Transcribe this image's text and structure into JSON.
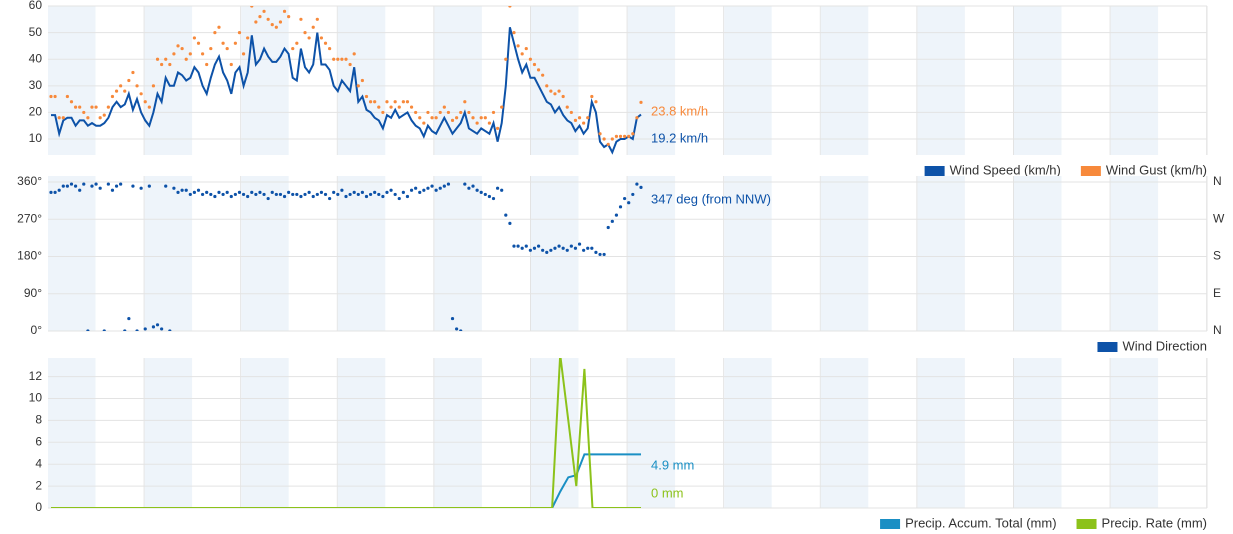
{
  "chart_data": [
    {
      "type": "line",
      "ylim": [
        4,
        60
      ],
      "yticks": [
        10,
        20,
        30,
        40,
        50,
        60
      ],
      "grid": true,
      "series": [
        {
          "name": "Wind Speed (km/h)",
          "color": "#0d52a8",
          "mode": "line",
          "end_label": "19.2 km/h",
          "values": [
            19,
            19,
            12,
            17,
            18,
            18,
            15,
            17,
            17,
            15,
            16,
            15,
            15,
            16,
            18,
            22,
            24,
            22,
            23,
            27,
            21,
            25,
            20,
            17,
            15,
            20,
            27,
            24,
            33,
            30,
            30,
            35,
            34,
            32,
            33,
            37,
            35,
            30,
            27,
            33,
            38,
            41,
            35,
            32,
            27,
            35,
            37,
            30,
            35,
            49,
            38,
            40,
            44,
            41,
            39,
            39,
            41,
            44,
            42,
            33,
            32,
            44,
            37,
            35,
            38,
            50,
            38,
            38,
            36,
            30,
            28,
            32,
            30,
            28,
            37,
            24,
            26,
            21,
            20,
            18,
            17,
            14,
            19,
            18,
            21,
            18,
            19,
            20,
            17,
            15,
            14,
            11,
            15,
            13,
            12,
            15,
            18,
            15,
            12,
            14,
            16,
            20,
            14,
            13,
            12,
            14,
            13,
            12,
            16,
            9,
            16,
            30,
            52,
            46,
            40,
            35,
            38,
            33,
            33,
            30,
            27,
            24,
            23,
            20,
            22,
            19,
            17,
            16,
            13,
            15,
            12,
            14,
            24,
            20,
            9,
            7,
            8,
            5,
            9,
            10,
            10,
            11,
            10,
            18,
            19.2
          ]
        },
        {
          "name": "Wind Gust (km/h)",
          "color": "#f7893b",
          "mode": "markers",
          "end_label": "23.8 km/h",
          "values": [
            26,
            26,
            18,
            18,
            26,
            24,
            22,
            22,
            20,
            18,
            22,
            22,
            18,
            19,
            22,
            26,
            28,
            30,
            28,
            32,
            35,
            30,
            27,
            24,
            22,
            30,
            40,
            38,
            40,
            38,
            42,
            45,
            44,
            40,
            42,
            48,
            46,
            42,
            38,
            44,
            50,
            52,
            46,
            44,
            38,
            46,
            50,
            42,
            48,
            60,
            54,
            56,
            58,
            55,
            53,
            52,
            54,
            58,
            56,
            44,
            46,
            55,
            50,
            48,
            52,
            55,
            48,
            46,
            44,
            40,
            40,
            40,
            40,
            38,
            42,
            30,
            32,
            26,
            24,
            24,
            22,
            20,
            24,
            22,
            24,
            22,
            24,
            24,
            22,
            20,
            18,
            16,
            20,
            18,
            18,
            20,
            22,
            20,
            17,
            18,
            20,
            24,
            20,
            18,
            16,
            18,
            18,
            16,
            20,
            14,
            22,
            40,
            60,
            50,
            45,
            42,
            44,
            40,
            38,
            36,
            34,
            30,
            28,
            27,
            28,
            26,
            22,
            20,
            17,
            18,
            16,
            18,
            26,
            24,
            12,
            10,
            8,
            10,
            11,
            11,
            11,
            11,
            12,
            18,
            23.8
          ]
        }
      ]
    },
    {
      "type": "scatter",
      "ylim": [
        0,
        360
      ],
      "grid": true,
      "yticks": [
        {
          "value": 0,
          "label": "0°"
        },
        {
          "value": 90,
          "label": "90°"
        },
        {
          "value": 180,
          "label": "180°"
        },
        {
          "value": 270,
          "label": "270°"
        },
        {
          "value": 360,
          "label": "360°"
        }
      ],
      "y2lim": [
        0,
        360
      ],
      "y2ticks": [
        {
          "value": 0,
          "label": "N"
        },
        {
          "value": 90,
          "label": "E"
        },
        {
          "value": 180,
          "label": "S"
        },
        {
          "value": 270,
          "label": "W"
        },
        {
          "value": 360,
          "label": "N"
        }
      ],
      "series": [
        {
          "name": "Wind Direction",
          "color": "#0d52a8",
          "mode": "markers",
          "end_label": "347 deg (from NNW)",
          "values": [
            335,
            335,
            340,
            350,
            350,
            355,
            350,
            340,
            355,
            0,
            350,
            355,
            345,
            0,
            355,
            340,
            350,
            355,
            0,
            30,
            350,
            0,
            345,
            5,
            350,
            10,
            15,
            5,
            350,
            0,
            345,
            335,
            340,
            340,
            330,
            335,
            340,
            330,
            335,
            330,
            325,
            335,
            330,
            335,
            325,
            330,
            335,
            330,
            325,
            335,
            330,
            335,
            330,
            320,
            335,
            330,
            330,
            325,
            335,
            330,
            330,
            325,
            330,
            335,
            325,
            330,
            335,
            330,
            320,
            335,
            330,
            340,
            325,
            330,
            335,
            330,
            335,
            325,
            330,
            335,
            330,
            325,
            335,
            340,
            330,
            320,
            335,
            325,
            340,
            345,
            335,
            340,
            345,
            350,
            340,
            345,
            350,
            355,
            30,
            5,
            0,
            355,
            345,
            350,
            340,
            335,
            330,
            325,
            320,
            345,
            340,
            280,
            260,
            205,
            205,
            200,
            205,
            195,
            200,
            205,
            195,
            190,
            195,
            200,
            205,
            200,
            195,
            205,
            200,
            210,
            195,
            200,
            200,
            190,
            185,
            185,
            250,
            265,
            280,
            300,
            320,
            310,
            330,
            355,
            347
          ]
        }
      ]
    },
    {
      "type": "line",
      "ylim": [
        0,
        13.7
      ],
      "yticks": [
        0,
        2,
        4,
        6,
        8,
        10,
        12
      ],
      "grid": true,
      "series": [
        {
          "name": "Precip. Accum. Total (mm)",
          "color": "#1a8fc4",
          "mode": "line",
          "end_label": "4.9 mm",
          "values": [
            0,
            0,
            0,
            0,
            0,
            0,
            0,
            0,
            0,
            0,
            0,
            0,
            0,
            0,
            0,
            0,
            0,
            0,
            0,
            0,
            0,
            0,
            0,
            0,
            0,
            0,
            0,
            0,
            0,
            0,
            0,
            0,
            0,
            0,
            0,
            0,
            0,
            0,
            0,
            0,
            0,
            0,
            0,
            0,
            0,
            0,
            0,
            0,
            0,
            0,
            0,
            0,
            0,
            0,
            0,
            0,
            0,
            0,
            0,
            0,
            0,
            0,
            0,
            1.5,
            2.8,
            3,
            4.9,
            4.9,
            4.9,
            4.9,
            4.9,
            4.9,
            4.9,
            4.9
          ]
        },
        {
          "name": "Precip. Rate (mm)",
          "color": "#8cc21a",
          "mode": "line",
          "end_label": "0 mm",
          "values": [
            0,
            0,
            0,
            0,
            0,
            0,
            0,
            0,
            0,
            0,
            0,
            0,
            0,
            0,
            0,
            0,
            0,
            0,
            0,
            0,
            0,
            0,
            0,
            0,
            0,
            0,
            0,
            0,
            0,
            0,
            0,
            0,
            0,
            0,
            0,
            0,
            0,
            0,
            0,
            0,
            0,
            0,
            0,
            0,
            0,
            0,
            0,
            0,
            0,
            0,
            0,
            0,
            0,
            0,
            0,
            0,
            0,
            0,
            0,
            0,
            0,
            0,
            0,
            14,
            8,
            2,
            12.7,
            0,
            0,
            0,
            0,
            0,
            0,
            0
          ]
        }
      ]
    }
  ]
}
